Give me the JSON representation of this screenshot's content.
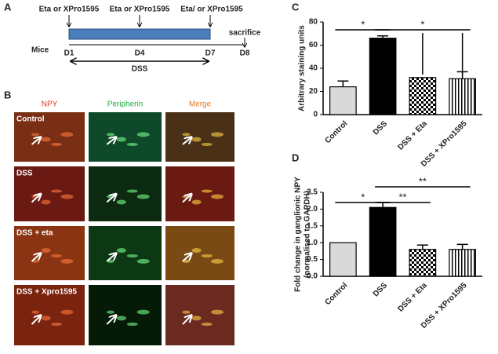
{
  "panel_a": {
    "label": "A",
    "subject": "Mice",
    "treatments": [
      "Eta or XPro1595",
      "Eta or XPro1595",
      "Eta/ or XPro1595"
    ],
    "endpoint": "sacrifice",
    "days": [
      "D1",
      "D4",
      "D7",
      "D8"
    ],
    "period": "DSS"
  },
  "panel_b": {
    "label": "B",
    "channels": [
      "NPY",
      "Peripherin",
      "Merge"
    ],
    "rows": [
      "Control",
      "DSS",
      "DSS + eta",
      "DSS + Xpro1595"
    ]
  },
  "chart_data": [
    {
      "type": "bar",
      "panel": "C",
      "y_label": "Arbitrary staining units",
      "categories": [
        "Control",
        "DSS",
        "DSS + Eta",
        "DSS + XPro1595"
      ],
      "values": [
        24,
        66,
        32,
        31
      ],
      "errors": [
        5,
        2,
        null,
        6
      ],
      "fills": [
        "#d9d9d9",
        "#000000",
        "checker",
        "stripes"
      ],
      "ylim": [
        0,
        80
      ],
      "yticks": [
        0,
        20,
        40,
        60,
        80
      ],
      "significance": [
        "*",
        "*"
      ]
    },
    {
      "type": "bar",
      "panel": "D",
      "y_label": [
        "Fold change in ganglionic NPY",
        "(normalised to GAPDH)"
      ],
      "categories": [
        "Control",
        "DSS",
        "DSS + Eta",
        "DSS + XPro1595"
      ],
      "values": [
        1.0,
        2.05,
        0.8,
        0.8
      ],
      "errors": [
        null,
        0.15,
        0.13,
        0.15
      ],
      "fills": [
        "#d9d9d9",
        "#000000",
        "checker",
        "stripes"
      ],
      "ylim": [
        0,
        2.5
      ],
      "yticks": [
        {
          "value": 0,
          "label": "0.0"
        },
        0.5,
        {
          "value": 1,
          "label": "1.0"
        },
        1.5,
        {
          "value": 2,
          "label": "2.0"
        },
        2.5
      ],
      "significance": [
        "*",
        "**",
        "**"
      ]
    }
  ]
}
